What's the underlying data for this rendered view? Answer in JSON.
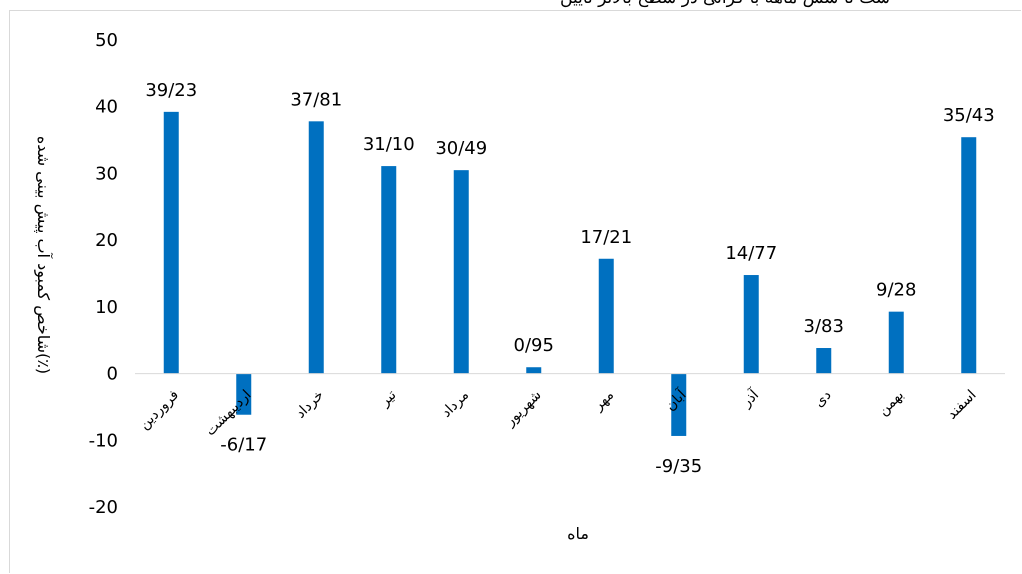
{
  "chart_data": {
    "type": "bar",
    "title": "ست تا شش ماهه با کرانی در سطح بالاتر ناییں",
    "xlabel": "ماه",
    "ylabel": "شاخص کمبود آب پیش بینی شده(٪)",
    "ylim": [
      -20,
      50
    ],
    "yticks": [
      -20,
      -10,
      0,
      10,
      20,
      30,
      40,
      50
    ],
    "categories": [
      "فروردین",
      "اردیبهشت",
      "خرداد",
      "تیر",
      "مرداد",
      "شهریور",
      "مهر",
      "آبان",
      "آذر",
      "دی",
      "بهمن",
      "اسفند"
    ],
    "values": [
      39.23,
      -6.17,
      37.81,
      31.1,
      30.49,
      0.95,
      17.21,
      -9.35,
      14.77,
      3.83,
      9.28,
      35.43
    ],
    "data_labels": [
      "39/23",
      "-6/17",
      "37/81",
      "31/10",
      "30/49",
      "0/95",
      "17/21",
      "-9/35",
      "14/77",
      "3/83",
      "9/28",
      "35/43"
    ],
    "grid": false,
    "legend": "none",
    "bar_color": "#0070c0"
  }
}
